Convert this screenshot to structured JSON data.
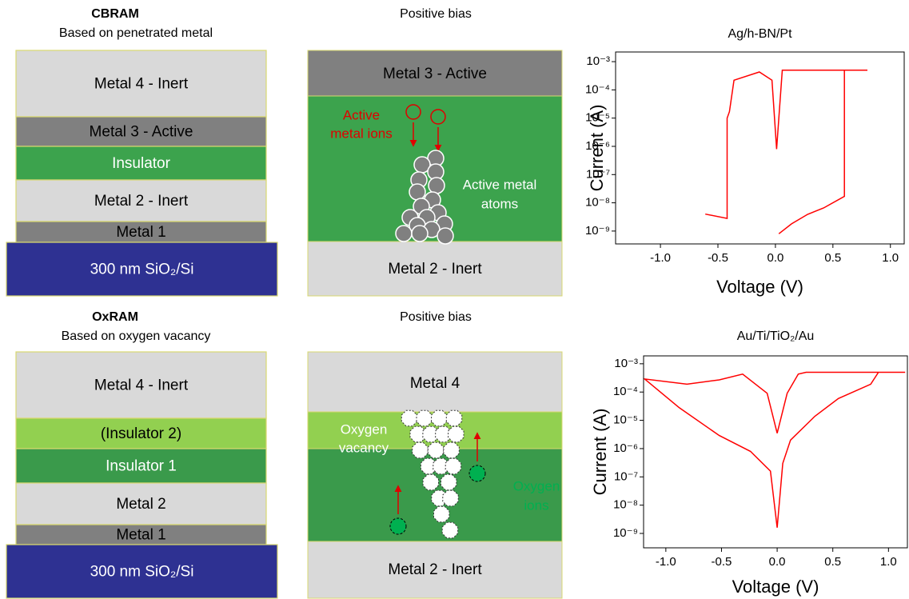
{
  "cbram": {
    "title": "CBRAM",
    "subtitle": "Based on penetrated metal",
    "layers": [
      "Metal 4 - Inert",
      "Metal 3 - Active",
      "Insulator",
      "Metal 2 - Inert",
      "Metal 1",
      "300 nm SiO₂/Si"
    ]
  },
  "cbram_bias": {
    "title": "Positive bias",
    "layers": [
      "Metal 3 - Active",
      "Metal 2 - Inert"
    ],
    "ions_label": [
      "Active",
      "metal ions"
    ],
    "atoms_label": [
      "Active metal",
      "atoms"
    ]
  },
  "oxram": {
    "title": "OxRAM",
    "subtitle": "Based on oxygen vacancy",
    "layers": [
      "Metal 4 - Inert",
      "(Insulator 2)",
      "Insulator 1",
      "Metal 2",
      "Metal 1",
      "300 nm SiO₂/Si"
    ]
  },
  "oxram_bias": {
    "title": "Positive bias",
    "layers": [
      "Metal 4",
      "Metal 2 - Inert"
    ],
    "vacancy_label": [
      "Oxygen",
      "vacancy"
    ],
    "ions_label": [
      "Oxygen",
      "ions"
    ]
  },
  "chart_data": [
    {
      "type": "line",
      "title": "Ag/h-BN/Pt",
      "x_label": "Voltage (V)",
      "y_label": "Current (A)",
      "log_y": true,
      "xlim": [
        -1.39,
        1.12
      ],
      "ylim": [
        3.5e-10,
        0.0022
      ],
      "xticks": [
        {
          "value": -1,
          "label": "-1.0"
        },
        {
          "value": -0.5,
          "label": "-0.5"
        },
        {
          "value": 0,
          "label": "0.0"
        },
        {
          "value": 0.5,
          "label": "0.5"
        },
        {
          "value": 1,
          "label": "1.0"
        }
      ],
      "yticks": [
        {
          "value": 1e-09,
          "label": "10⁻⁹"
        },
        {
          "value": 1e-08,
          "label": "10⁻⁸"
        },
        {
          "value": 1e-07,
          "label": "10⁻⁷"
        },
        {
          "value": 1e-06,
          "label": "10⁻⁶"
        },
        {
          "value": 1e-05,
          "label": "10⁻⁵"
        },
        {
          "value": 0.0001,
          "label": "10⁻⁴"
        },
        {
          "value": 0.001,
          "label": "10⁻³"
        }
      ],
      "color": "#ff0000",
      "x": [
        0.03,
        0.14,
        0.28,
        0.42,
        0.6,
        0.6,
        0.8,
        0.06,
        0.01,
        -0.03,
        -0.14,
        -0.36,
        -0.4,
        -0.42,
        -0.42,
        -0.61
      ],
      "values": [
        8e-10,
        1.8e-09,
        3.9e-09,
        6.6e-09,
        1.7e-08,
        0.0005,
        0.0005,
        0.0005,
        8e-07,
        0.00022,
        0.00043,
        0.00022,
        1.7e-05,
        1e-05,
        2.8e-09,
        4e-09
      ]
    },
    {
      "type": "line",
      "title": "Au/Ti/TiO₂/Au",
      "x_label": "Voltage (V)",
      "y_label": "Current (A)",
      "log_y": true,
      "xlim": [
        -1.2,
        1.17
      ],
      "ylim": [
        3.1e-10,
        0.0019
      ],
      "xticks": [
        {
          "value": -1,
          "label": "-1.0"
        },
        {
          "value": -0.5,
          "label": "-0.5"
        },
        {
          "value": 0,
          "label": "0.0"
        },
        {
          "value": 0.5,
          "label": "0.5"
        },
        {
          "value": 1,
          "label": "1.0"
        }
      ],
      "yticks": [
        {
          "value": 1e-09,
          "label": "10⁻⁹"
        },
        {
          "value": 1e-08,
          "label": "10⁻⁸"
        },
        {
          "value": 1e-07,
          "label": "10⁻⁷"
        },
        {
          "value": 1e-06,
          "label": "10⁻⁶"
        },
        {
          "value": 1e-05,
          "label": "10⁻⁵"
        },
        {
          "value": 0.0001,
          "label": "10⁻⁴"
        },
        {
          "value": 0.001,
          "label": "10⁻³"
        }
      ],
      "color": "#ff0000",
      "x": [
        0,
        0.05,
        0.12,
        0.34,
        0.55,
        0.84,
        0.91,
        1.15,
        0.26,
        0.19,
        0.09,
        0,
        -0.09,
        -0.31,
        -0.52,
        -0.81,
        -1.19,
        -0.88,
        -0.52,
        -0.24,
        -0.06,
        0
      ],
      "values": [
        1.6e-09,
        3e-07,
        2e-06,
        1.4e-05,
        5.9e-05,
        0.00019,
        0.0005,
        0.0005,
        0.0005,
        0.00043,
        9e-05,
        3.5e-06,
        9e-05,
        0.00043,
        0.00027,
        0.00019,
        0.00029,
        2.8e-05,
        2.9e-06,
        8e-07,
        1.6e-07,
        1.6e-09
      ]
    }
  ]
}
